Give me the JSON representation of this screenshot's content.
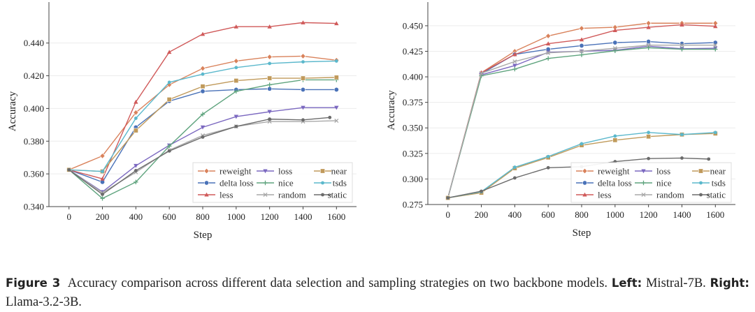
{
  "series_style": {
    "reweight": {
      "color": "#d9825b",
      "marker": "diamond"
    },
    "delta loss": {
      "color": "#4a72b8",
      "marker": "circle"
    },
    "less": {
      "color": "#d05a5a",
      "marker": "triangle-up"
    },
    "loss": {
      "color": "#7b68c0",
      "marker": "triangle-down"
    },
    "nice": {
      "color": "#5fa47e",
      "marker": "plus"
    },
    "tsds_dummy": null,
    "random": {
      "color": "#a8a8a8",
      "marker": "x"
    },
    "near": {
      "color": "#c09a5b",
      "marker": "square"
    },
    "tsds": {
      "color": "#5bb8cc",
      "marker": "dot"
    },
    "static": {
      "color": "#6b6b6b",
      "marker": "dot"
    }
  },
  "chart_data": [
    {
      "type": "line",
      "panel": "Left",
      "xlabel": "Step",
      "ylabel": "Accuracy",
      "xlim": [
        -120,
        1720
      ],
      "ylim": [
        0.34,
        0.4565
      ],
      "xticks": [
        "0",
        "200",
        "400",
        "600",
        "800",
        "1000",
        "1200",
        "1400",
        "1600"
      ],
      "yticks": [
        "0.340",
        "0.360",
        "0.380",
        "0.400",
        "0.420",
        "0.440"
      ],
      "grid": "horizontal",
      "legend_position": "bottom-right",
      "legend_order": [
        "reweight",
        "loss",
        "near",
        "delta loss",
        "nice",
        "tsds",
        "less",
        "random",
        "static"
      ],
      "x": [
        0,
        200,
        400,
        600,
        800,
        1000,
        1200,
        1400,
        1600
      ],
      "series": [
        {
          "name": "reweight",
          "y": [
            0.3625,
            0.371,
            0.3975,
            0.4145,
            0.4245,
            0.429,
            0.4315,
            0.432,
            0.4295
          ]
        },
        {
          "name": "delta loss",
          "y": [
            0.3625,
            0.355,
            0.3885,
            0.4045,
            0.4105,
            0.4115,
            0.412,
            0.4115,
            0.4115
          ]
        },
        {
          "name": "less",
          "y": [
            0.3625,
            0.357,
            0.404,
            0.4345,
            0.4455,
            0.45,
            0.45,
            0.4525,
            0.452
          ]
        },
        {
          "name": "loss",
          "y": [
            0.3625,
            0.349,
            0.365,
            0.3775,
            0.3885,
            0.395,
            0.398,
            0.4005,
            0.4005
          ]
        },
        {
          "name": "nice",
          "y": [
            0.3625,
            0.345,
            0.355,
            0.377,
            0.3965,
            0.4105,
            0.4145,
            0.4175,
            0.4175
          ]
        },
        {
          "name": "random",
          "y": [
            0.3625,
            0.3485,
            0.361,
            0.3745,
            0.3835,
            0.389,
            0.392,
            0.392,
            0.3925
          ]
        },
        {
          "name": "near",
          "y": [
            0.3625,
            0.3615,
            0.3865,
            0.4055,
            0.4135,
            0.417,
            0.4185,
            0.4185,
            0.419
          ]
        },
        {
          "name": "tsds",
          "y": [
            0.3625,
            0.3615,
            0.394,
            0.416,
            0.421,
            0.425,
            0.4275,
            0.4285,
            0.429
          ]
        },
        {
          "name": "static",
          "x": [
            0,
            200,
            400,
            600,
            800,
            1000,
            1200,
            1400,
            1560
          ],
          "y": [
            0.3625,
            0.3475,
            0.362,
            0.374,
            0.3825,
            0.389,
            0.3935,
            0.393,
            0.3945
          ]
        }
      ]
    },
    {
      "type": "line",
      "panel": "Right",
      "xlabel": "Step",
      "ylabel": "Accuracy",
      "xlim": [
        -120,
        1720
      ],
      "ylim": [
        0.275,
        0.4595
      ],
      "xticks": [
        "0",
        "200",
        "400",
        "600",
        "800",
        "1000",
        "1200",
        "1400",
        "1600"
      ],
      "yticks": [
        "0.275",
        "0.300",
        "0.325",
        "0.350",
        "0.375",
        "0.400",
        "0.425",
        "0.450"
      ],
      "grid": "horizontal",
      "legend_position": "bottom-right",
      "legend_order": [
        "reweight",
        "loss",
        "near",
        "delta loss",
        "nice",
        "tsds",
        "less",
        "random",
        "static"
      ],
      "x": [
        0,
        200,
        400,
        600,
        800,
        1000,
        1200,
        1400,
        1600
      ],
      "series": [
        {
          "name": "reweight",
          "y": [
            0.2815,
            0.404,
            0.425,
            0.44,
            0.4475,
            0.4485,
            0.4525,
            0.4525,
            0.4525
          ]
        },
        {
          "name": "delta loss",
          "y": [
            0.2815,
            0.403,
            0.422,
            0.427,
            0.4305,
            0.4335,
            0.4345,
            0.4325,
            0.4335
          ]
        },
        {
          "name": "less",
          "y": [
            0.2815,
            0.404,
            0.422,
            0.4325,
            0.4365,
            0.4455,
            0.4485,
            0.451,
            0.4495
          ]
        },
        {
          "name": "loss",
          "y": [
            0.2815,
            0.402,
            0.411,
            0.424,
            0.425,
            0.426,
            0.43,
            0.4275,
            0.428
          ]
        },
        {
          "name": "nice",
          "y": [
            0.2815,
            0.401,
            0.4075,
            0.418,
            0.4215,
            0.4255,
            0.4285,
            0.427,
            0.427
          ]
        },
        {
          "name": "random",
          "y": [
            0.2815,
            0.4035,
            0.415,
            0.4235,
            0.425,
            0.428,
            0.431,
            0.431,
            0.431
          ]
        },
        {
          "name": "near",
          "y": [
            0.2815,
            0.2865,
            0.3105,
            0.321,
            0.333,
            0.338,
            0.3415,
            0.3435,
            0.3445
          ]
        },
        {
          "name": "tsds",
          "y": [
            0.2815,
            0.2875,
            0.3115,
            0.322,
            0.3345,
            0.342,
            0.3455,
            0.3435,
            0.3455
          ]
        },
        {
          "name": "static",
          "x": [
            0,
            200,
            400,
            600,
            800,
            1000,
            1200,
            1400,
            1560
          ],
          "y": [
            0.2815,
            0.288,
            0.301,
            0.311,
            0.312,
            0.317,
            0.32,
            0.3205,
            0.3195
          ]
        }
      ]
    }
  ],
  "caption": {
    "label": "Figure 3",
    "text": "Accuracy comparison across different data selection and sampling strategies on two backbone models.",
    "left_label": "Left:",
    "left_text": "Mistral-7B.",
    "right_label": "Right:",
    "right_text": "Llama-3.2-3B."
  }
}
